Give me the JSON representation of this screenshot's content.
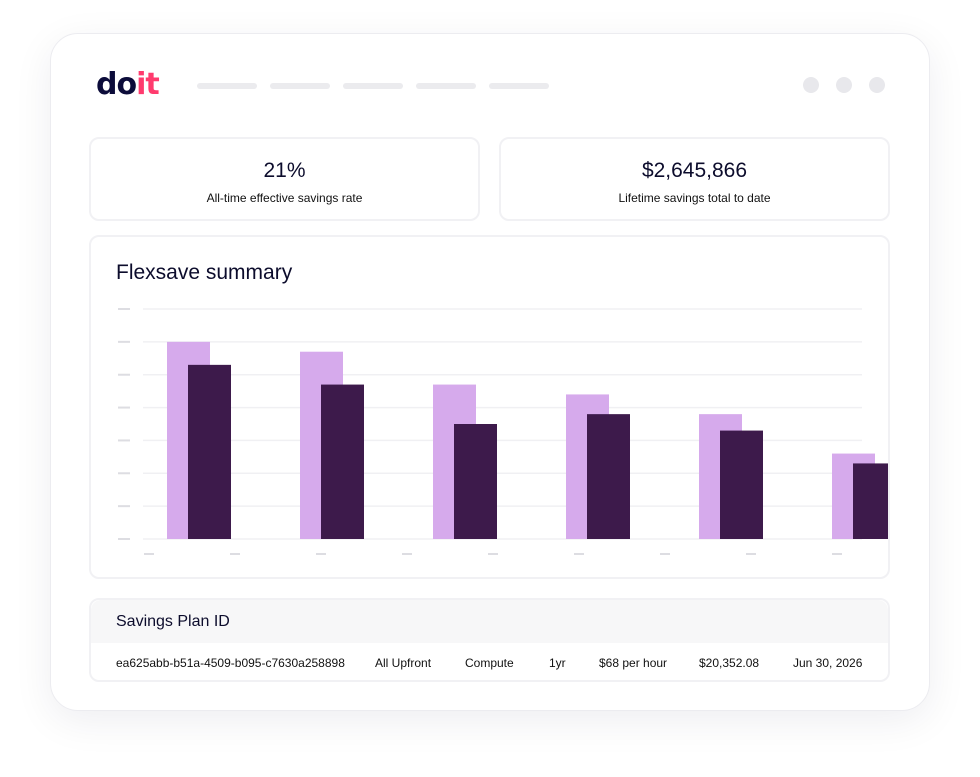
{
  "brand": {
    "logo_do": "do",
    "logo_it": "it"
  },
  "stats": [
    {
      "value": "21%",
      "label": "All-time effective savings rate"
    },
    {
      "value": "$2,645,866",
      "label": "Lifetime savings total to date"
    }
  ],
  "chart": {
    "title": "Flexsave summary"
  },
  "chart_data": {
    "type": "bar",
    "title": "Flexsave summary",
    "categories": [
      "",
      "",
      "",
      "",
      "",
      ""
    ],
    "series": [
      {
        "values": [
          6.0,
          5.7,
          4.7,
          4.4,
          3.8,
          2.6
        ],
        "color": "#d6aaec"
      },
      {
        "values": [
          5.3,
          4.7,
          3.5,
          3.8,
          3.3,
          2.3
        ],
        "color": "#3d1a4b"
      }
    ],
    "ylim": [
      0,
      7
    ],
    "grid": true,
    "legend": "none"
  },
  "table": {
    "header": "Savings Plan ID",
    "row": [
      "ea625abb-b51a-4509-b095-c7630a258898",
      "All Upfront",
      "Compute",
      "1yr",
      "$68 per hour",
      "$20,352.08",
      "Jun 30, 2026"
    ]
  },
  "colors": {
    "accent_light": "#d6aaec",
    "accent_dark": "#3d1a4b",
    "brand_pink": "#ff3b6e",
    "brand_navy": "#0c0c3a"
  }
}
